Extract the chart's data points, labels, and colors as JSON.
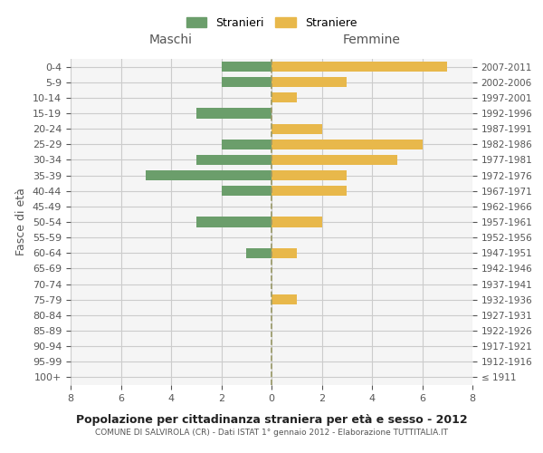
{
  "age_groups": [
    "100+",
    "95-99",
    "90-94",
    "85-89",
    "80-84",
    "75-79",
    "70-74",
    "65-69",
    "60-64",
    "55-59",
    "50-54",
    "45-49",
    "40-44",
    "35-39",
    "30-34",
    "25-29",
    "20-24",
    "15-19",
    "10-14",
    "5-9",
    "0-4"
  ],
  "birth_years": [
    "≤ 1911",
    "1912-1916",
    "1917-1921",
    "1922-1926",
    "1927-1931",
    "1932-1936",
    "1937-1941",
    "1942-1946",
    "1947-1951",
    "1952-1956",
    "1957-1961",
    "1962-1966",
    "1967-1971",
    "1972-1976",
    "1977-1981",
    "1982-1986",
    "1987-1991",
    "1992-1996",
    "1997-2001",
    "2002-2006",
    "2007-2011"
  ],
  "males": [
    0,
    0,
    0,
    0,
    0,
    0,
    0,
    0,
    1,
    0,
    3,
    0,
    2,
    5,
    3,
    2,
    0,
    3,
    0,
    2,
    2
  ],
  "females": [
    0,
    0,
    0,
    0,
    0,
    1,
    0,
    0,
    1,
    0,
    2,
    0,
    3,
    3,
    5,
    6,
    2,
    0,
    1,
    3,
    7
  ],
  "male_color": "#6b9e6b",
  "female_color": "#e8b84b",
  "grid_color": "#cccccc",
  "center_line_color": "#999966",
  "xlim": 8,
  "title": "Popolazione per cittadinanza straniera per età e sesso - 2012",
  "subtitle": "COMUNE DI SALVIROLA (CR) - Dati ISTAT 1° gennaio 2012 - Elaborazione TUTTITALIA.IT",
  "ylabel_left": "Fasce di età",
  "xlabel_maschi": "Maschi",
  "xlabel_femmine": "Femmine",
  "legend_stranieri": "Stranieri",
  "legend_straniere": "Straniere",
  "background_color": "#ffffff",
  "plot_bg_color": "#f5f5f5"
}
